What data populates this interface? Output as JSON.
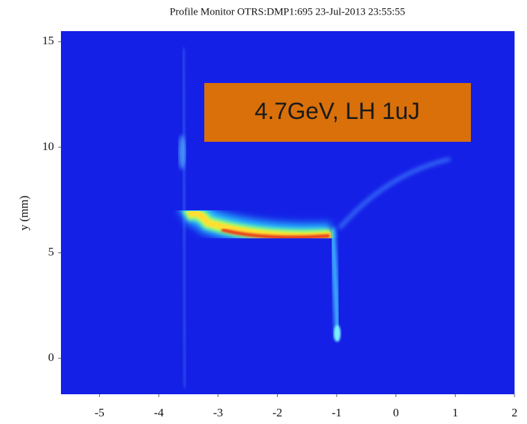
{
  "chart_data": {
    "type": "image",
    "title": "Profile Monitor OTRS:DMP1:695 23-Jul-2013 23:55:55",
    "annotation": "4.7GeV, LH 1uJ",
    "y_label": "y (mm)",
    "xlim": [
      -5.65,
      2.0
    ],
    "xticks": [
      -5,
      -4,
      -3,
      -2,
      -1,
      0,
      1,
      2
    ],
    "ylim": [
      -1.7,
      15.5
    ],
    "yticks": [
      0,
      5,
      10,
      15
    ],
    "grid": false
  }
}
